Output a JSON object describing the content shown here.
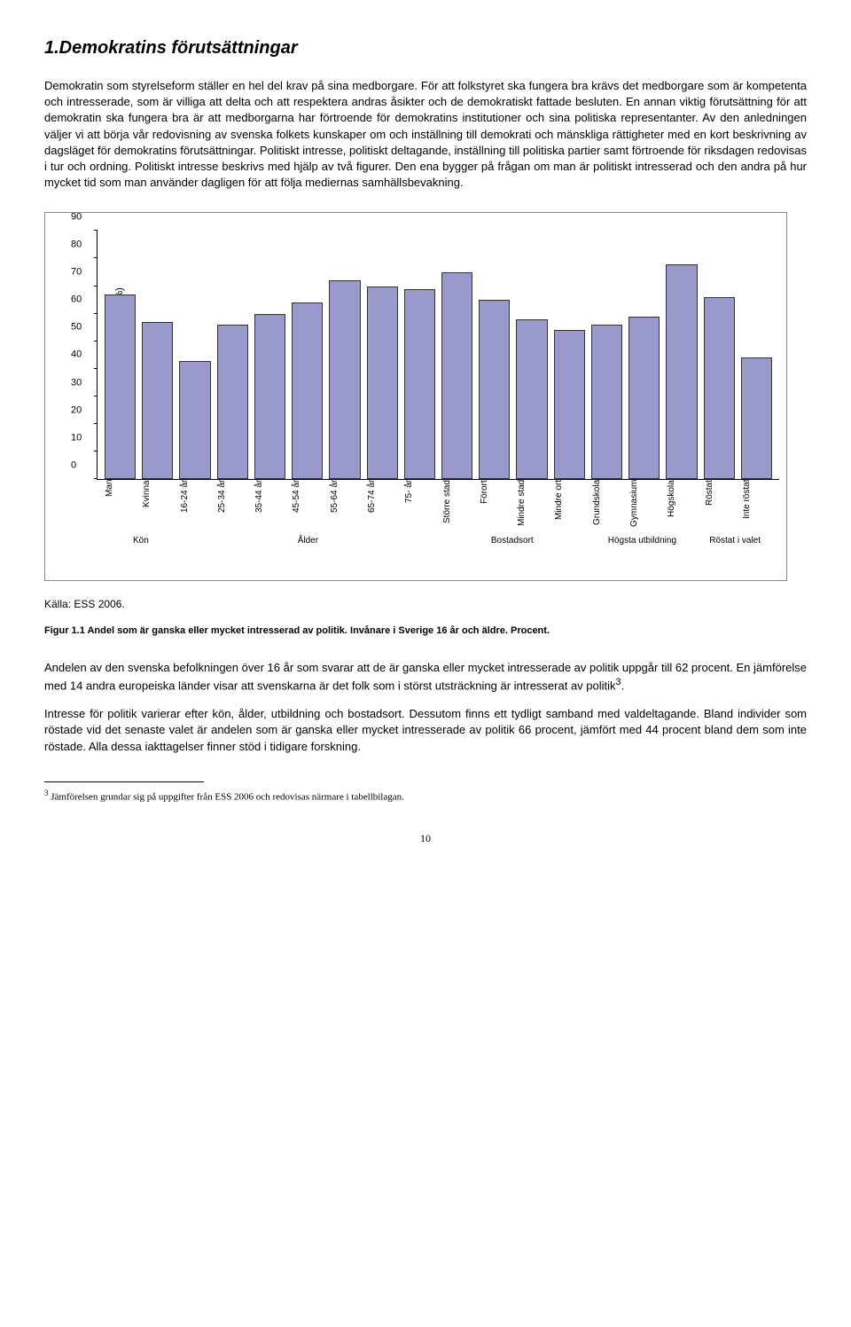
{
  "heading": "1.Demokratins förutsättningar",
  "paragraphs": {
    "p1": "Demokratin som styrelseform ställer en hel del krav på sina medborgare. För att folkstyret ska fungera bra krävs det medborgare som är kompetenta och intresserade, som är villiga att delta och att respektera andras åsikter och de demokratiskt fattade besluten. En annan viktig förutsättning för att demokratin ska fungera bra är att medborgarna har förtroende för demokratins institutioner och sina politiska representanter. Av den anledningen väljer vi att börja vår redovisning av svenska folkets kunskaper om och inställning till demokrati och mänskliga rättigheter med en kort beskrivning av dagsläget för demokratins förutsättningar. Politiskt intresse, politiskt deltagande, inställning till politiska partier samt förtroende för riksdagen redovisas i tur och ordning. Politiskt intresse beskrivs med hjälp av två figurer. Den ena bygger på frågan om man är politiskt intresserad och den andra på hur mycket tid som man använder dagligen för att följa mediernas samhällsbevakning.",
    "p2": "Andelen av den svenska befolkningen över 16 år som svarar att de är ganska eller mycket intresserade av politik uppgår till 62 procent. En jämförelse med 14 andra europeiska länder visar att svenskarna är det folk som i störst utsträckning är intresserat av politik",
    "p2_sup": "3",
    "p2_end": ".",
    "p3": "Intresse för politik varierar efter kön, ålder, utbildning och bostadsort. Dessutom finns ett tydligt samband med valdeltagande. Bland individer som röstade vid det senaste valet är andelen som är ganska eller mycket intresserade av politik 66 procent, jämfört med 44 procent bland dem som inte röstade. Alla dessa iakttagelser finner stöd i tidigare forskning."
  },
  "chart": {
    "y_label": "Andel intresserad av politik (%)",
    "ylim": [
      0,
      90
    ],
    "ytick_step": 10,
    "bar_color": "#9999cc",
    "bar_border": "#333333",
    "categories": [
      "Man",
      "Kvinna",
      "16-24 år",
      "25-34 år",
      "35-44 år",
      "45-54 år",
      "55-64 år",
      "65-74 år",
      "75- år",
      "Större stad",
      "Förort",
      "Mindre stad",
      "Mindre ort",
      "Grundskola",
      "Gymnasium",
      "Högskola",
      "Röstat",
      "Inte röstat"
    ],
    "values": [
      67,
      57,
      43,
      56,
      60,
      64,
      72,
      70,
      69,
      75,
      65,
      58,
      54,
      56,
      59,
      78,
      66,
      44
    ],
    "groups": [
      {
        "label": "Kön",
        "span": 2
      },
      {
        "label": "Ålder",
        "span": 7
      },
      {
        "label": "Bostadsort",
        "span": 4
      },
      {
        "label": "Högsta utbildning",
        "span": 3
      },
      {
        "label": "Röstat i valet",
        "span": 2
      }
    ]
  },
  "source": "Källa: ESS 2006.",
  "figure_caption": "Figur 1.1 Andel som är ganska eller mycket intresserad av politik. Invånare i Sverige 16 år och äldre. Procent.",
  "footnote": {
    "num": "3",
    "text": " Jämförelsen grundar sig på uppgifter från ESS 2006 och redovisas närmare i tabellbilagan."
  },
  "page_num": "10"
}
